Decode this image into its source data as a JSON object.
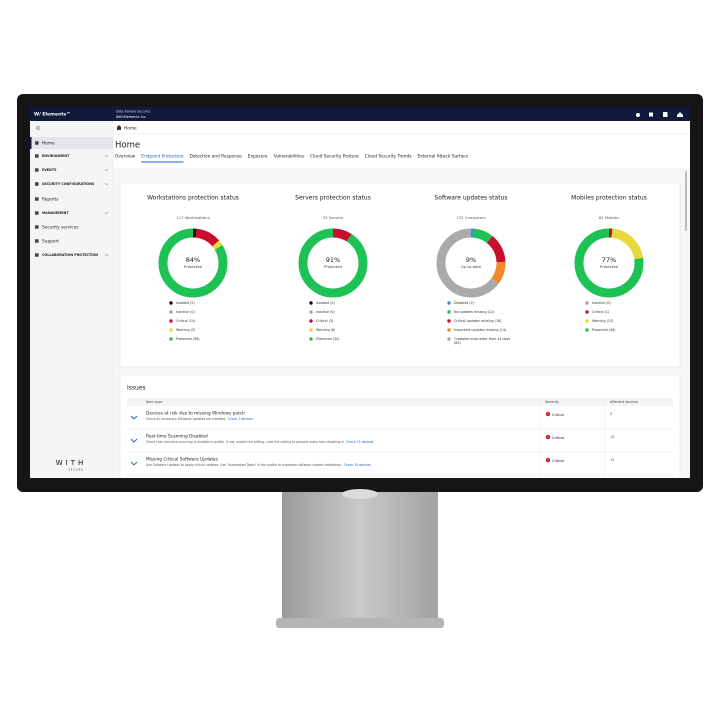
{
  "header": {
    "brand": "W/ Elements™",
    "org": "Data Fellows Security",
    "company": "WithElements Inc"
  },
  "sidebar": {
    "items": [
      "Home",
      "ENVIRONMENT",
      "EVENTS",
      "SECURITY CONFIGURATIONS",
      "Reports",
      "MANAGEMENT",
      "Security services",
      "Support",
      "COLLABORATION PROTECTION"
    ],
    "logo": "WITH",
    "logo_sub": "SECURE"
  },
  "breadcrumb": "Home",
  "page_title": "Home",
  "tabs": [
    "Overview",
    "Endpoint Protection",
    "Detection and Response",
    "Exposure",
    "Vulnerabilities",
    "Cloud Security Posture",
    "Cloud Security Trends",
    "External Attack Surface"
  ],
  "cards": [
    {
      "title": "Workstations protection status",
      "subtitle": "117 Workstations",
      "center_value": "84%",
      "center_label": "Protected",
      "segments": [
        {
          "legend": "Isolated (2)",
          "value": 2,
          "color": "#111111"
        },
        {
          "legend": "Inactive (0)",
          "value": 0,
          "color": "#a6a6a6"
        },
        {
          "legend": "Critical (14)",
          "value": 14,
          "color": "#c8102e"
        },
        {
          "legend": "Warning (3)",
          "value": 3,
          "color": "#e9d83b"
        },
        {
          "legend": "Protected (98)",
          "value": 98,
          "color": "#1ec254"
        }
      ]
    },
    {
      "title": "Servers protection status",
      "subtitle": "33 Servers",
      "center_value": "91%",
      "center_label": "Protected",
      "segments": [
        {
          "legend": "Isolated (0)",
          "value": 0,
          "color": "#111111"
        },
        {
          "legend": "Inactive (0)",
          "value": 0,
          "color": "#a6a6a6"
        },
        {
          "legend": "Critical (3)",
          "value": 3,
          "color": "#c8102e"
        },
        {
          "legend": "Warning (0)",
          "value": 0,
          "color": "#e9d83b"
        },
        {
          "legend": "Protected (30)",
          "value": 30,
          "color": "#1ec254"
        }
      ]
    },
    {
      "title": "Software updates status",
      "subtitle": "131 Computers",
      "center_value": "9%",
      "center_label": "Up-to-date",
      "segments": [
        {
          "legend": "Disabled (2)",
          "value": 2,
          "color": "#3b8fd9"
        },
        {
          "legend": "No updates missing (12)",
          "value": 12,
          "color": "#1ec254"
        },
        {
          "legend": "Critical updates missing (18)",
          "value": 18,
          "color": "#c8102e"
        },
        {
          "legend": "Important updates missing (14)",
          "value": 14,
          "color": "#f08a2c"
        },
        {
          "legend": "Outdated scan older than 14 days (85)",
          "value": 85,
          "color": "#aaaaaa"
        }
      ]
    },
    {
      "title": "Mobiles protection status",
      "subtitle": "62 Mobiles",
      "center_value": "77%",
      "center_label": "Protected",
      "segments": [
        {
          "legend": "Inactive (0)",
          "value": 0,
          "color": "#a6a6a6"
        },
        {
          "legend": "Critical (1)",
          "value": 1,
          "color": "#c8102e"
        },
        {
          "legend": "Warning (13)",
          "value": 13,
          "color": "#e9d83b"
        },
        {
          "legend": "Protected (48)",
          "value": 48,
          "color": "#1ec254"
        }
      ]
    }
  ],
  "issues": {
    "title": "Issues",
    "columns": [
      "Item type",
      "Severity",
      "Affected devices"
    ],
    "rows": [
      {
        "title": "Devices at risk due to missing Windows patch",
        "description": "Check all necessary Windows updates are installed.",
        "link": "Check 2 devices",
        "severity": "Critical",
        "affected": 2
      },
      {
        "title": "Real-time Scanning Disabled",
        "description": "Check that real-time scanning is enabled in profile. If not, enable the setting. Lock the setting to prevent users from disabling it.",
        "link": "Check 15 devices",
        "severity": "Critical",
        "affected": 15
      },
      {
        "title": "Missing Critical Software Updates",
        "description": "Use Software Updater to apply critical updates. Use \"Automated Tasks\" in the profile to automate software update installation.",
        "link": "Check 15 devices",
        "severity": "Critical",
        "affected": 15
      }
    ]
  }
}
